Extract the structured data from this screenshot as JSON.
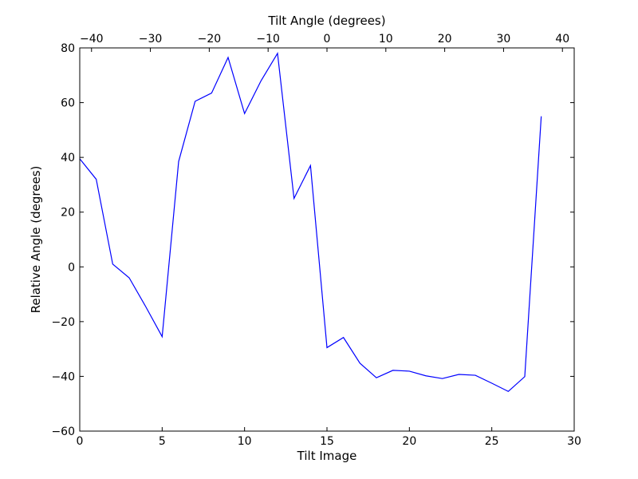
{
  "chart_data": {
    "type": "line",
    "xlabel": "Tilt Image",
    "ylabel": "Relative Angle (degrees)",
    "top_xlabel": "Tilt Angle (degrees)",
    "xlim": [
      0,
      30
    ],
    "ylim": [
      -60,
      80
    ],
    "top_xlim": [
      -42,
      42
    ],
    "x_ticks": [
      0,
      5,
      10,
      15,
      20,
      25,
      30
    ],
    "y_ticks": [
      -60,
      -40,
      -20,
      0,
      20,
      40,
      60,
      80
    ],
    "top_x_ticks": [
      -40,
      -30,
      -20,
      -10,
      0,
      10,
      20,
      30,
      40
    ],
    "x_tick_labels": [
      "0",
      "5",
      "10",
      "15",
      "20",
      "25",
      "30"
    ],
    "y_tick_labels": [
      "−60",
      "−40",
      "−20",
      "0",
      "20",
      "40",
      "60",
      "80"
    ],
    "top_x_tick_labels": [
      "−40",
      "−30",
      "−20",
      "−10",
      "0",
      "10",
      "20",
      "30",
      "40"
    ],
    "grid": false,
    "series": [
      {
        "color": "#0000ff",
        "x": [
          0,
          1,
          2,
          3,
          4,
          5,
          6,
          7,
          8,
          9,
          10,
          11,
          12,
          13,
          14,
          15,
          16,
          17,
          18,
          19,
          20,
          21,
          22,
          23,
          24,
          25,
          26,
          27,
          28
        ],
        "y": [
          39.5,
          32,
          1,
          -4,
          -14.5,
          -25.5,
          38.5,
          60.5,
          63.5,
          76.5,
          56,
          68,
          78,
          25,
          37,
          -29.5,
          -25.8,
          -35.2,
          -40.5,
          -37.8,
          -38.1,
          -39.8,
          -40.8,
          -39.3,
          -39.6,
          -42.5,
          -45.5,
          -40.1,
          55
        ]
      }
    ]
  }
}
